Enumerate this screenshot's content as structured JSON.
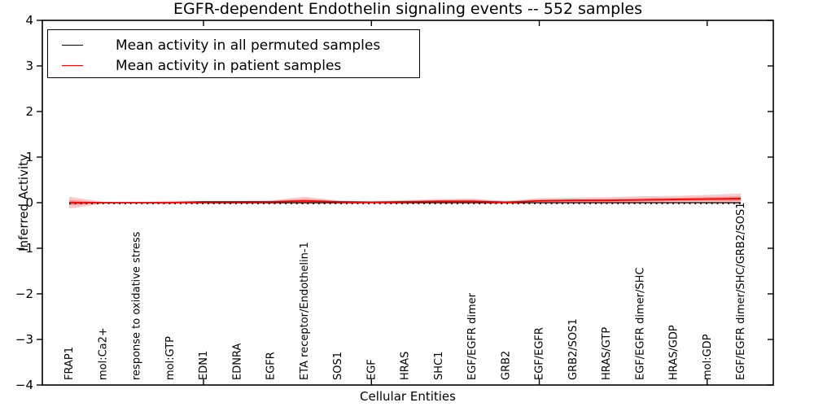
{
  "chart_data": {
    "type": "line",
    "title": "EGFR-dependent Endothelin signaling events -- 552 samples",
    "xlabel": "Cellular Entities",
    "ylabel": "Inferred Activity",
    "ylim": [
      -4,
      4
    ],
    "yticks": [
      4,
      3,
      2,
      1,
      0,
      -1,
      -2,
      -3,
      -4
    ],
    "ytick_labels": [
      "4",
      "3",
      "2",
      "1",
      "0",
      "−1",
      "−2",
      "−3",
      "−4"
    ],
    "grid": false,
    "legend_position": "upper left",
    "categories": [
      "FRAP1",
      "mol:Ca2+",
      "response to oxidative stress",
      "mol:GTP",
      "EDN1",
      "EDNRA",
      "EGFR",
      "ETA receptor/Endothelin-1",
      "SOS1",
      "EGF",
      "HRAS",
      "SHC1",
      "EGF/EGFR dimer",
      "GRB2",
      "EGF/EGFR",
      "GRB2/SOS1",
      "HRAS/GTP",
      "EGF/EGFR dimer/SHC",
      "HRAS/GDP",
      "mol:GDP",
      "EGF/EGFR dimer/SHC/GRB2/SOS1"
    ],
    "series": [
      {
        "name": "Mean activity in all permuted samples",
        "color": "#000000",
        "values": [
          0.0,
          0.0,
          0.0,
          0.0,
          0.0,
          0.0,
          0.0,
          0.0,
          0.0,
          0.0,
          0.0,
          0.0,
          0.0,
          0.0,
          0.0,
          0.0,
          0.0,
          0.0,
          0.0,
          0.0,
          0.0
        ]
      },
      {
        "name": "Mean activity in patient samples",
        "color": "#ff0000",
        "values": [
          0.0,
          0.0,
          0.0,
          0.0,
          0.02,
          0.02,
          0.02,
          0.04,
          0.02,
          0.01,
          0.02,
          0.03,
          0.03,
          0.01,
          0.04,
          0.05,
          0.05,
          0.06,
          0.07,
          0.08,
          0.09
        ]
      }
    ],
    "band": {
      "series": "Mean activity in patient samples",
      "color": "#ff0000",
      "opacity": 0.25,
      "upper": [
        0.13,
        0.02,
        0.01,
        0.04,
        0.04,
        0.04,
        0.05,
        0.13,
        0.05,
        0.03,
        0.06,
        0.08,
        0.09,
        0.04,
        0.1,
        0.11,
        0.12,
        0.14,
        0.15,
        0.17,
        0.2
      ],
      "lower": [
        -0.13,
        -0.02,
        -0.01,
        -0.03,
        0.0,
        0.0,
        0.0,
        -0.03,
        0.0,
        -0.01,
        0.0,
        -0.01,
        -0.01,
        -0.01,
        0.0,
        0.0,
        0.0,
        0.0,
        0.0,
        0.0,
        -0.02
      ]
    },
    "zero_line": {
      "y": 0,
      "style": "dotted",
      "color": "#000000"
    }
  }
}
